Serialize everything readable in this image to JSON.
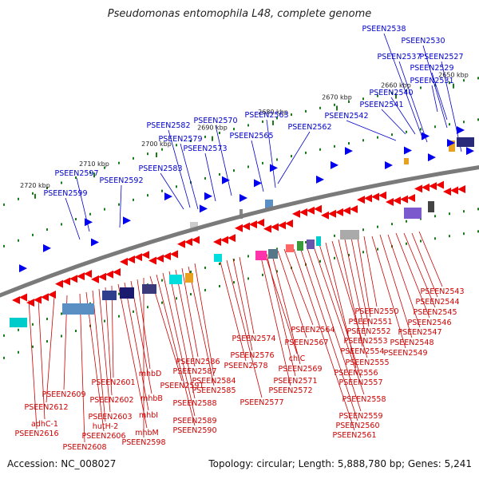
{
  "title": "Pseudomonas entomophila L48, complete genome",
  "footer": {
    "accession": "Accession: NC_008027",
    "topology": "Topology: circular; Length: 5,888,780 bp; Genes: 5,241"
  },
  "colors": {
    "forward_strand": "#0000ee",
    "reverse_strand": "#ee0000",
    "top_label": "#0000cc",
    "bottom_label": "#cc0000",
    "backbone": "#7a7a7a",
    "tick_dots": "#1a7a1a"
  },
  "kbp_markers": [
    "2650 kbp",
    "2660 kbp",
    "2670 kbp",
    "2680 kbp",
    "2690 kbp",
    "2700 kbp",
    "2710 kbp",
    "2720 kbp"
  ],
  "top_labels": [
    "PSEEN2538",
    "PSEEN2530",
    "PSEEN2537",
    "PSEEN2527",
    "PSEEN2529",
    "PSEEN2531",
    "PSEEN2540",
    "PSEEN2541",
    "PSEEN2542",
    "PSEEN2563",
    "PSEEN2562",
    "PSEEN2570",
    "PSEEN2582",
    "PSEEN2565",
    "PSEEN2579",
    "PSEEN2573",
    "PSEEN2583",
    "PSEEN2597",
    "PSEEN2592",
    "PSEEN2599"
  ],
  "bottom_labels": [
    "PSEEN2543",
    "PSEEN2544",
    "PSEEN2545",
    "PSEEN2546",
    "PSEEN2547",
    "PSEEN2548",
    "PSEEN2549",
    "PSEEN2550",
    "PSEEN2551",
    "PSEEN2552",
    "PSEEN2553",
    "PSEEN2554",
    "PSEEN2555",
    "PSEEN2556",
    "PSEEN2557",
    "PSEEN2558",
    "PSEEN2559",
    "PSEEN2560",
    "PSEEN2561",
    "PSEEN2564",
    "PSEEN2567",
    "PSEEN2569",
    "PSEEN2571",
    "PSEEN2572",
    "PSEEN2574",
    "PSEEN2576",
    "PSEEN2577",
    "PSEEN2578",
    "chiC",
    "PSEEN2584",
    "PSEEN2585",
    "PSEEN2586",
    "PSEEN2587",
    "PSEEN2588",
    "PSEEN2589",
    "PSEEN2590",
    "PSEEN2591",
    "PSEEN2598",
    "mhbD",
    "mhbB",
    "mhbI",
    "mhbM",
    "PSEEN2601",
    "PSEEN2602",
    "PSEEN2603",
    "hutH-2",
    "PSEEN2606",
    "PSEEN2608",
    "PSEEN2609",
    "PSEEN2612",
    "adhC-1",
    "PSEEN2616"
  ]
}
